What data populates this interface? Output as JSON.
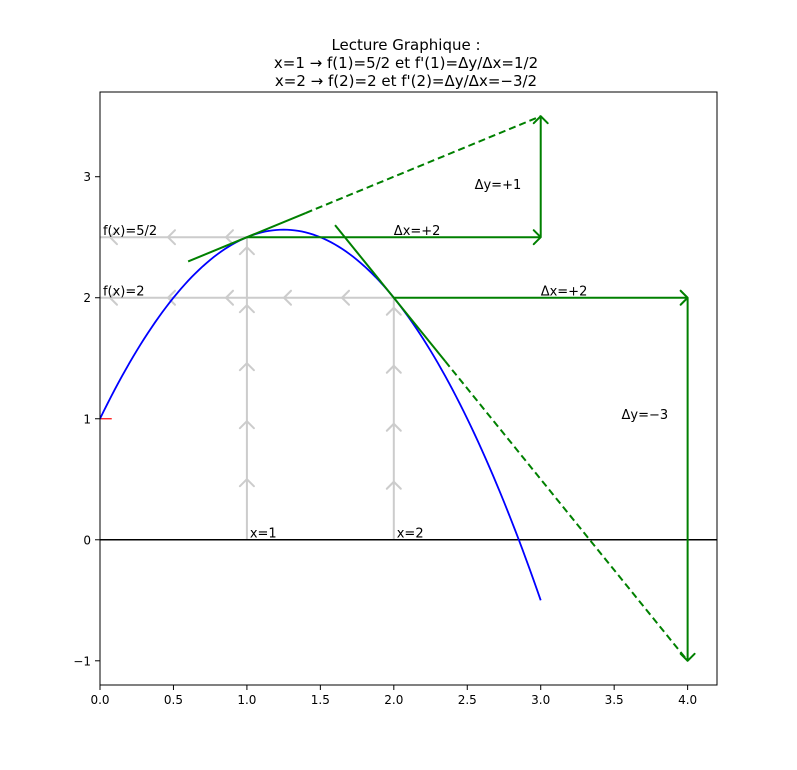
{
  "chart_data": {
    "type": "line",
    "title_lines": [
      "Lecture Graphique :",
      "x=1 → f(1)=5/2 et f'(1)=Δy/Δx=1/2",
      "x=2 → f(2)=2 et f'(2)=Δy/Δx=−3/2"
    ],
    "xlabel": "",
    "ylabel": "",
    "xlim": [
      0,
      4.2
    ],
    "ylim": [
      -1.2,
      3.7
    ],
    "xticks": [
      "0.0",
      "0.5",
      "1.0",
      "1.5",
      "2.0",
      "2.5",
      "3.0",
      "3.5",
      "4.0"
    ],
    "xtick_values": [
      0,
      0.5,
      1,
      1.5,
      2,
      2.5,
      3,
      3.5,
      4
    ],
    "yticks": [
      "−1",
      "0",
      "1",
      "2",
      "3"
    ],
    "ytick_values": [
      -1,
      0,
      1,
      2,
      3
    ],
    "grid": false,
    "curve": {
      "name": "",
      "color": "#0000ff",
      "function": "f(x) = -x^2 + 2.5x + 1",
      "x": [
        0,
        0.25,
        0.5,
        0.75,
        1,
        1.25,
        1.5,
        1.75,
        2,
        2.25,
        2.5,
        2.75,
        3
      ],
      "y": [
        1,
        1.5625,
        2,
        2.3125,
        2.5,
        2.5625,
        2.5,
        2.3125,
        2,
        1.5625,
        1,
        0.3125,
        -0.5
      ]
    },
    "tangents": [
      {
        "x": [
          0.6,
          1.4
        ],
        "y": [
          2.3,
          2.7
        ],
        "style": "solid",
        "color": "#008000"
      },
      {
        "x": [
          1.4,
          3.0
        ],
        "y": [
          2.7,
          3.5
        ],
        "style": "dashed",
        "color": "#008000"
      },
      {
        "x": [
          1.6,
          2.35
        ],
        "y": [
          2.6,
          1.475
        ],
        "style": "solid",
        "color": "#008000"
      },
      {
        "x": [
          2.35,
          4.0
        ],
        "y": [
          1.475,
          -1.0
        ],
        "style": "dashed",
        "color": "#008000"
      }
    ],
    "arrows": [
      {
        "x": [
          1,
          3
        ],
        "y": [
          2.5,
          2.5
        ],
        "color": "#008000"
      },
      {
        "x": [
          3,
          3
        ],
        "y": [
          2.5,
          3.5
        ],
        "color": "#008000"
      },
      {
        "x": [
          2,
          4
        ],
        "y": [
          2,
          2
        ],
        "color": "#008000"
      },
      {
        "x": [
          4,
          4
        ],
        "y": [
          2,
          -1
        ],
        "color": "#008000"
      }
    ],
    "guides": [
      {
        "x": [
          1,
          1
        ],
        "y": [
          0,
          2.5
        ],
        "direction": "up",
        "color": "#cccccc"
      },
      {
        "x": [
          1,
          0
        ],
        "y": [
          2.5,
          2.5
        ],
        "direction": "left",
        "color": "#cccccc"
      },
      {
        "x": [
          2,
          2
        ],
        "y": [
          0,
          2
        ],
        "direction": "up",
        "color": "#cccccc"
      },
      {
        "x": [
          2,
          0
        ],
        "y": [
          2,
          2
        ],
        "direction": "left",
        "color": "#cccccc"
      }
    ],
    "axis_line": {
      "y": 0,
      "color": "#000000"
    },
    "marker": {
      "x": [
        0,
        0.08
      ],
      "y": [
        1,
        1
      ],
      "color": "#ff0000"
    },
    "annotations": [
      {
        "text": "f(x)=5/2",
        "x": 0.02,
        "y": 2.52
      },
      {
        "text": "f(x)=2",
        "x": 0.02,
        "y": 2.02
      },
      {
        "text": "x=1",
        "x": 1.02,
        "y": 0.02
      },
      {
        "text": "x=2",
        "x": 2.02,
        "y": 0.02
      },
      {
        "text": "Δx=+2",
        "x": 2.0,
        "y": 2.52
      },
      {
        "text": "Δy=+1",
        "x": 2.55,
        "y": 2.9
      },
      {
        "text": "Δx=+2",
        "x": 3.0,
        "y": 2.02
      },
      {
        "text": "Δy=−3",
        "x": 3.55,
        "y": 1.0
      }
    ]
  }
}
